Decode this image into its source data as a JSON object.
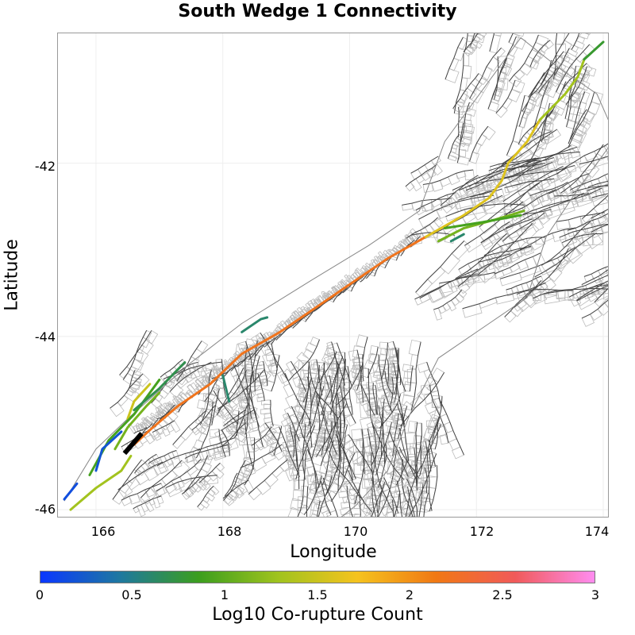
{
  "title": "South Wedge 1 Connectivity",
  "x_axis": {
    "label": "Longitude",
    "ticks": [
      "166",
      "168",
      "170",
      "172",
      "174"
    ]
  },
  "y_axis": {
    "label": "Latitude",
    "ticks": [
      "-42",
      "-44",
      "-46"
    ]
  },
  "colorbar": {
    "label": "Log10 Co-rupture Count",
    "ticks": [
      "0",
      "0.5",
      "1",
      "1.5",
      "2",
      "2.5",
      "3"
    ],
    "colors": [
      "#0a37ff",
      "#1e78a0",
      "#3c9e1e",
      "#a0c31e",
      "#f5c31e",
      "#f07814",
      "#f05a5a",
      "#ff8cf0"
    ]
  },
  "colors": {
    "fault_trace": "#444444",
    "fault_patch": "#bbbbbb",
    "coast": "#888888",
    "source": "#000000"
  },
  "chart_data": {
    "type": "map",
    "title": "South Wedge 1 Connectivity",
    "xlabel": "Longitude",
    "ylabel": "Latitude",
    "xlim": [
      165.4,
      174.1
    ],
    "ylim": [
      -46.1,
      -40.5
    ],
    "colorbar_range": [
      0,
      3
    ],
    "source_fault": {
      "name": "South Wedge 1",
      "points": [
        [
          166.45,
          -45.35
        ],
        [
          166.72,
          -45.12
        ]
      ]
    },
    "connected_faults": [
      {
        "value": 2.2,
        "points": [
          [
            166.6,
            -45.25
          ],
          [
            166.85,
            -45.08
          ],
          [
            167.3,
            -44.8
          ],
          [
            167.8,
            -44.55
          ],
          [
            168.3,
            -44.2
          ],
          [
            168.9,
            -43.95
          ],
          [
            169.5,
            -43.65
          ],
          [
            170.0,
            -43.4
          ],
          [
            170.6,
            -43.1
          ],
          [
            171.2,
            -42.85
          ]
        ]
      },
      {
        "value": 1.6,
        "points": [
          [
            171.2,
            -42.85
          ],
          [
            171.8,
            -42.6
          ],
          [
            172.2,
            -42.4
          ],
          [
            172.4,
            -42.2
          ],
          [
            172.5,
            -42.0
          ],
          [
            172.8,
            -41.75
          ],
          [
            173.0,
            -41.5
          ]
        ]
      },
      {
        "value": 1.3,
        "points": [
          [
            173.0,
            -41.5
          ],
          [
            173.4,
            -41.2
          ],
          [
            173.6,
            -41.0
          ],
          [
            173.7,
            -40.8
          ]
        ]
      },
      {
        "value": 0.8,
        "points": [
          [
            173.7,
            -40.8
          ],
          [
            174.0,
            -40.6
          ]
        ]
      },
      {
        "value": 1.1,
        "points": [
          [
            171.4,
            -42.9
          ],
          [
            171.8,
            -42.75
          ],
          [
            172.3,
            -42.65
          ],
          [
            172.75,
            -42.55
          ]
        ]
      },
      {
        "value": 0.9,
        "points": [
          [
            171.5,
            -42.75
          ],
          [
            172.1,
            -42.68
          ],
          [
            172.7,
            -42.6
          ]
        ]
      },
      {
        "value": 1.3,
        "points": [
          [
            165.6,
            -46.0
          ],
          [
            166.0,
            -45.75
          ],
          [
            166.4,
            -45.55
          ],
          [
            166.55,
            -45.38
          ]
        ]
      },
      {
        "value": 1.5,
        "points": [
          [
            166.5,
            -44.95
          ],
          [
            166.6,
            -44.75
          ],
          [
            166.85,
            -44.55
          ]
        ]
      },
      {
        "value": 1.1,
        "points": [
          [
            166.3,
            -45.3
          ],
          [
            166.5,
            -45.05
          ],
          [
            166.8,
            -44.8
          ],
          [
            167.0,
            -44.65
          ]
        ]
      },
      {
        "value": 0.9,
        "points": [
          [
            165.9,
            -45.6
          ],
          [
            166.2,
            -45.2
          ],
          [
            166.6,
            -44.9
          ],
          [
            167.0,
            -44.5
          ]
        ]
      },
      {
        "value": 0.7,
        "points": [
          [
            166.6,
            -44.85
          ],
          [
            167.0,
            -44.6
          ],
          [
            167.4,
            -44.3
          ]
        ]
      },
      {
        "value": 0.2,
        "points": [
          [
            166.0,
            -45.55
          ],
          [
            166.1,
            -45.3
          ],
          [
            166.4,
            -45.1
          ]
        ]
      },
      {
        "value": 0.15,
        "points": [
          [
            165.5,
            -45.88
          ],
          [
            165.7,
            -45.7
          ]
        ]
      },
      {
        "value": 0.6,
        "points": [
          [
            168.3,
            -43.95
          ],
          [
            168.6,
            -43.8
          ],
          [
            168.7,
            -43.78
          ]
        ]
      },
      {
        "value": 0.6,
        "points": [
          [
            168.0,
            -44.45
          ],
          [
            168.1,
            -44.75
          ]
        ]
      },
      {
        "value": 0.6,
        "points": [
          [
            171.6,
            -42.9
          ],
          [
            171.8,
            -42.82
          ]
        ]
      }
    ]
  }
}
